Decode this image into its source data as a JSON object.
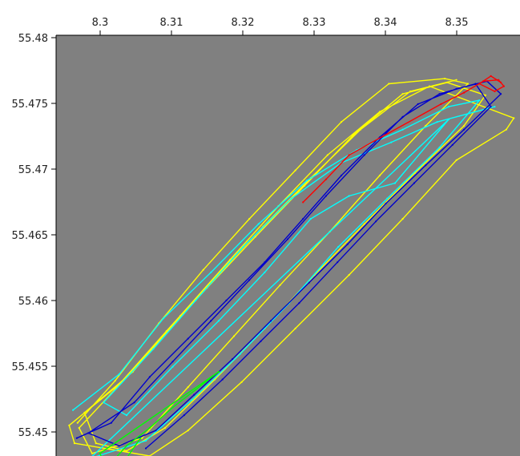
{
  "chart_data": {
    "type": "scatter",
    "title": "",
    "xlabel": "",
    "ylabel": "",
    "x_ticks": [
      "8.3",
      "8.31",
      "8.32",
      "8.33",
      "8.34",
      "8.35"
    ],
    "y_ticks": [
      "55.48",
      "55.475",
      "55.47",
      "55.465",
      "55.46",
      "55.455",
      "55.45"
    ],
    "xlim": [
      8.2968,
      8.3573
    ],
    "ylim": [
      55.4486,
      55.4816
    ],
    "grid": false,
    "background_color": "#808080",
    "series": [
      {
        "color": "#ffff00",
        "values": [
          [
            8.2996,
            55.4512
          ],
          [
            8.3045,
            55.4545
          ],
          [
            8.3102,
            55.459
          ],
          [
            8.316,
            55.4632
          ],
          [
            8.322,
            55.4672
          ],
          [
            8.328,
            55.471
          ],
          [
            8.334,
            55.4748
          ],
          [
            8.3402,
            55.4778
          ],
          [
            8.3475,
            55.4782
          ],
          [
            8.3505,
            55.4778
          ],
          [
            8.345,
            55.4745
          ],
          [
            8.339,
            55.4706
          ],
          [
            8.3325,
            55.4662
          ],
          [
            8.326,
            55.462
          ],
          [
            8.32,
            55.458
          ],
          [
            8.314,
            55.454
          ],
          [
            8.308,
            55.45
          ],
          [
            8.3015,
            55.4488
          ],
          [
            8.2998,
            55.4508
          ],
          [
            8.304,
            55.4535
          ],
          [
            8.31,
            55.4575
          ],
          [
            8.3165,
            55.4618
          ],
          [
            8.3228,
            55.4658
          ],
          [
            8.3292,
            55.4698
          ],
          [
            8.3356,
            55.4738
          ],
          [
            8.342,
            55.477
          ],
          [
            8.3478,
            55.4779
          ],
          [
            8.3528,
            55.4769
          ],
          [
            8.35,
            55.4745
          ],
          [
            8.3436,
            55.4708
          ],
          [
            8.337,
            55.4668
          ],
          [
            8.3305,
            55.4628
          ],
          [
            8.324,
            55.4586
          ],
          [
            8.3175,
            55.4546
          ],
          [
            8.311,
            55.4508
          ],
          [
            8.306,
            55.449
          ],
          [
            8.302,
            55.4496
          ],
          [
            8.3005,
            55.452
          ],
          [
            8.3068,
            55.4552
          ],
          [
            8.313,
            55.4596
          ],
          [
            8.3195,
            55.464
          ],
          [
            8.3258,
            55.4682
          ],
          [
            8.3322,
            55.4722
          ],
          [
            8.339,
            55.4756
          ],
          [
            8.3455,
            55.4776
          ],
          [
            8.3565,
            55.4751
          ],
          [
            8.3555,
            55.4742
          ],
          [
            8.349,
            55.4718
          ],
          [
            8.342,
            55.4672
          ],
          [
            8.335,
            55.4628
          ],
          [
            8.328,
            55.4586
          ],
          [
            8.321,
            55.4544
          ],
          [
            8.314,
            55.4506
          ],
          [
            8.309,
            55.4486
          ],
          [
            8.2992,
            55.4496
          ],
          [
            8.2985,
            55.451
          ],
          [
            8.305,
            55.4542
          ],
          [
            8.3112,
            55.4584
          ],
          [
            8.3175,
            55.4626
          ],
          [
            8.3238,
            55.4666
          ],
          [
            8.33,
            55.4704
          ],
          [
            8.3365,
            55.4742
          ],
          [
            8.343,
            55.4772
          ],
          [
            8.349,
            55.4781
          ]
        ]
      },
      {
        "color": "#00ffff",
        "values": [
          [
            8.299,
            55.4522
          ],
          [
            8.305,
            55.455
          ],
          [
            8.3108,
            55.4594
          ],
          [
            8.317,
            55.463
          ],
          [
            8.3232,
            55.4668
          ],
          [
            8.3295,
            55.4702
          ],
          [
            8.336,
            55.4726
          ],
          [
            8.342,
            55.4742
          ],
          [
            8.348,
            55.476
          ],
          [
            8.352,
            55.4765
          ],
          [
            8.3468,
            55.4728
          ],
          [
            8.34,
            55.4688
          ],
          [
            8.3336,
            55.465
          ],
          [
            8.3272,
            55.4606
          ],
          [
            8.3208,
            55.4566
          ],
          [
            8.3145,
            55.453
          ],
          [
            8.3085,
            55.4498
          ],
          [
            8.3012,
            55.4484
          ],
          [
            8.348,
            55.475
          ],
          [
            8.341,
            55.47
          ],
          [
            8.335,
            55.469
          ],
          [
            8.33,
            55.4672
          ],
          [
            8.324,
            55.463
          ],
          [
            8.318,
            55.4592
          ],
          [
            8.312,
            55.4556
          ],
          [
            8.306,
            55.4518
          ],
          [
            8.303,
            55.4528
          ],
          [
            8.3095,
            55.457
          ],
          [
            8.315,
            55.4608
          ],
          [
            8.3212,
            55.465
          ],
          [
            8.3275,
            55.4688
          ],
          [
            8.334,
            55.4716
          ],
          [
            8.3405,
            55.4732
          ],
          [
            8.3465,
            55.4748
          ],
          [
            8.354,
            55.476
          ]
        ]
      },
      {
        "color": "#0000cc",
        "values": [
          [
            8.2995,
            55.45
          ],
          [
            8.304,
            55.4512
          ],
          [
            8.309,
            55.4548
          ],
          [
            8.314,
            55.4578
          ],
          [
            8.319,
            55.4608
          ],
          [
            8.324,
            55.4638
          ],
          [
            8.329,
            55.4672
          ],
          [
            8.334,
            55.4706
          ],
          [
            8.339,
            55.4736
          ],
          [
            8.344,
            55.4762
          ],
          [
            8.349,
            55.4774
          ],
          [
            8.353,
            55.478
          ],
          [
            8.3548,
            55.477
          ],
          [
            8.35,
            55.4742
          ],
          [
            8.345,
            55.4714
          ],
          [
            8.3398,
            55.4684
          ],
          [
            8.3348,
            55.4652
          ],
          [
            8.3298,
            55.4622
          ],
          [
            8.3248,
            55.4592
          ],
          [
            8.3198,
            55.4562
          ],
          [
            8.3148,
            55.4534
          ],
          [
            8.3098,
            55.4506
          ],
          [
            8.305,
            55.4494
          ],
          [
            8.301,
            55.4504
          ],
          [
            8.307,
            55.4528
          ],
          [
            8.312,
            55.456
          ],
          [
            8.317,
            55.4592
          ],
          [
            8.322,
            55.4624
          ],
          [
            8.327,
            55.4656
          ],
          [
            8.332,
            55.469
          ],
          [
            8.337,
            55.4722
          ],
          [
            8.342,
            55.4752
          ],
          [
            8.3468,
            55.477
          ],
          [
            8.3515,
            55.4778
          ],
          [
            8.3535,
            55.476
          ],
          [
            8.3485,
            55.473
          ],
          [
            8.3435,
            55.47
          ],
          [
            8.3385,
            55.467
          ],
          [
            8.3335,
            55.4638
          ],
          [
            8.3285,
            55.4606
          ],
          [
            8.3235,
            55.4576
          ],
          [
            8.3185,
            55.4546
          ],
          [
            8.3135,
            55.4518
          ],
          [
            8.3085,
            55.4492
          ]
        ]
      },
      {
        "color": "#ff0000",
        "values": [
          [
            8.329,
            55.4685
          ],
          [
            8.332,
            55.4703
          ],
          [
            8.335,
            55.4722
          ],
          [
            8.347,
            55.4762
          ],
          [
            8.35,
            55.4771
          ],
          [
            8.3525,
            55.478
          ],
          [
            8.3545,
            55.4781
          ],
          [
            8.3552,
            55.4776
          ],
          [
            8.354,
            55.4772
          ],
          [
            8.352,
            55.4778
          ],
          [
            8.3535,
            55.4784
          ],
          [
            8.3548,
            55.4779
          ]
        ]
      },
      {
        "color": "#00ff00",
        "values": [
          [
            8.3025,
            55.4482
          ],
          [
            8.3045,
            55.4484
          ],
          [
            8.306,
            55.4494
          ],
          [
            8.309,
            55.4508
          ],
          [
            8.312,
            55.4524
          ],
          [
            8.315,
            55.4538
          ],
          [
            8.318,
            55.4552
          ],
          [
            8.3025,
            55.4488
          ],
          [
            8.3035,
            55.4476
          ],
          [
            8.3055,
            55.448
          ],
          [
            8.3078,
            55.45
          ]
        ]
      }
    ]
  }
}
